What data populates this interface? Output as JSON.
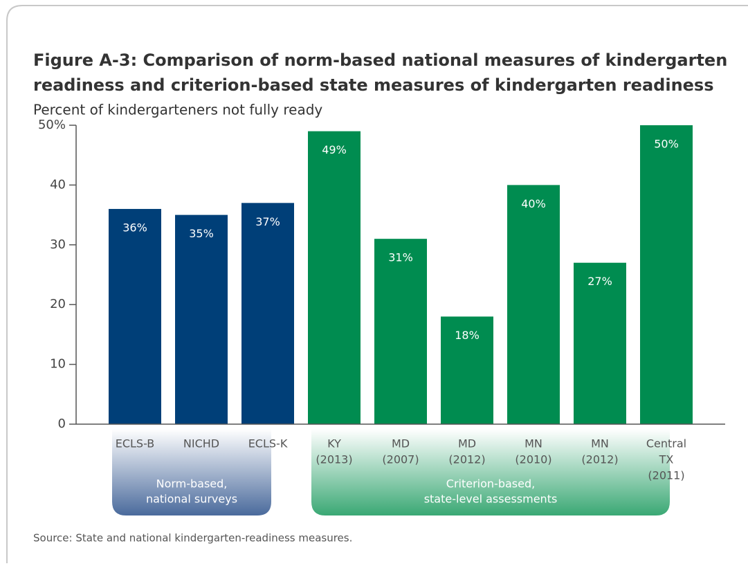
{
  "chart_data": {
    "type": "grouped-bar",
    "title": [
      "Figure A-3: Comparison of norm-based national measures of kindergarten",
      "readiness and criterion-based state measures of kindergarten readiness"
    ],
    "subtitle": "Percent of kindergarteners not fully ready",
    "ylim": [
      0,
      50
    ],
    "yticks": [
      0,
      10,
      20,
      30,
      40,
      {
        "value": 50,
        "label": "50%"
      }
    ],
    "groups": [
      {
        "label": [
          "Norm-based,",
          "national surveys"
        ],
        "color": "#003f78",
        "band_color": "#4a6a9c",
        "categories": [
          [
            "ECLS-B"
          ],
          [
            "NICHD"
          ],
          [
            "ECLS-K"
          ]
        ],
        "values": [
          36,
          35,
          37
        ],
        "value_labels": [
          "36%",
          "35%",
          "37%"
        ]
      },
      {
        "label": [
          "Criterion-based,",
          "state-level assessments"
        ],
        "color": "#008c50",
        "band_color": "#3aa874",
        "categories": [
          [
            "KY",
            "(2013)"
          ],
          [
            "MD",
            "(2007)"
          ],
          [
            "MD",
            "(2012)"
          ],
          [
            "MN",
            "(2010)"
          ],
          [
            "MN",
            "(2012)"
          ],
          [
            "Central",
            "TX",
            "(2011)"
          ]
        ],
        "values": [
          49,
          31,
          18,
          40,
          27,
          50
        ],
        "value_labels": [
          "49%",
          "31%",
          "18%",
          "40%",
          "27%",
          "50%"
        ]
      }
    ],
    "source": "Source: State and national kindergarten-readiness measures."
  }
}
